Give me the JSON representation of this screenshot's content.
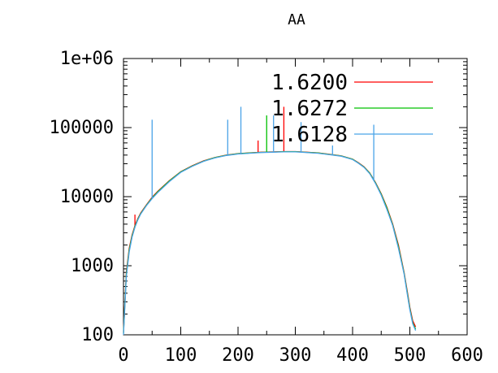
{
  "chart_data": {
    "type": "line",
    "title": "AA",
    "xlabel": "",
    "ylabel": "",
    "xlim": [
      0,
      600
    ],
    "ylim": [
      100,
      1000000
    ],
    "yscale": "log",
    "x_ticks": [
      0,
      100,
      200,
      300,
      400,
      500,
      600
    ],
    "x_tick_labels": [
      "0",
      "100",
      "200",
      "300",
      "400",
      "500",
      "600"
    ],
    "y_ticks": [
      100,
      1000,
      10000,
      100000,
      1000000
    ],
    "y_tick_labels": [
      "100",
      "1000",
      "10000",
      "100000",
      "1e+06"
    ],
    "grid": false,
    "legend_position": "top-right",
    "series": [
      {
        "name": "1.6200",
        "color": "#ff0000",
        "x": [
          0,
          5,
          10,
          15,
          20,
          25,
          30,
          40,
          50,
          60,
          80,
          100,
          120,
          140,
          160,
          180,
          200,
          220,
          240,
          260,
          280,
          300,
          320,
          340,
          360,
          380,
          400,
          410,
          420,
          430,
          440,
          450,
          460,
          470,
          480,
          490,
          495,
          500,
          505,
          510
        ],
        "y": [
          110,
          800,
          1800,
          2800,
          3800,
          4800,
          5800,
          7600,
          9800,
          12000,
          17000,
          23000,
          28000,
          33000,
          37000,
          40000,
          42000,
          43000,
          44000,
          44500,
          45000,
          45000,
          44000,
          43000,
          41000,
          39000,
          35000,
          31000,
          27000,
          22000,
          16000,
          11000,
          7000,
          4000,
          2000,
          800,
          450,
          250,
          160,
          130
        ],
        "spikes": [
          {
            "x": 20,
            "y": 5500
          },
          {
            "x": 235,
            "y": 65000
          },
          {
            "x": 280,
            "y": 200000
          }
        ]
      },
      {
        "name": "1.6272",
        "color": "#00c000",
        "x": [
          0,
          5,
          10,
          15,
          20,
          25,
          30,
          40,
          50,
          60,
          80,
          100,
          120,
          140,
          160,
          180,
          200,
          220,
          240,
          260,
          280,
          300,
          320,
          340,
          360,
          380,
          400,
          410,
          420,
          430,
          440,
          450,
          460,
          470,
          480,
          490,
          495,
          500,
          505,
          510
        ],
        "y": [
          105,
          750,
          1700,
          2700,
          3700,
          4700,
          5700,
          7500,
          9600,
          11800,
          16800,
          22800,
          27800,
          32800,
          36800,
          39800,
          41800,
          42800,
          43800,
          44300,
          44800,
          44800,
          43800,
          42800,
          40800,
          38800,
          34800,
          30800,
          26800,
          21800,
          15800,
          10800,
          6800,
          3900,
          1900,
          780,
          430,
          240,
          150,
          120
        ],
        "spikes": [
          {
            "x": 250,
            "y": 150000
          }
        ]
      },
      {
        "name": "1.6128",
        "color": "#4aa3e8",
        "x": [
          0,
          5,
          10,
          15,
          20,
          25,
          30,
          40,
          50,
          60,
          80,
          100,
          120,
          140,
          160,
          180,
          200,
          220,
          240,
          260,
          280,
          300,
          320,
          340,
          360,
          380,
          400,
          410,
          420,
          430,
          440,
          450,
          460,
          470,
          480,
          490,
          495,
          500,
          505,
          510
        ],
        "y": [
          100,
          700,
          1600,
          2600,
          3600,
          4600,
          5600,
          7400,
          9400,
          11500,
          16500,
          22500,
          27500,
          32500,
          36500,
          39500,
          41500,
          42500,
          43500,
          44000,
          44500,
          44500,
          43500,
          42500,
          40500,
          38500,
          34500,
          30500,
          26500,
          21500,
          15500,
          10500,
          6500,
          3800,
          1800,
          760,
          410,
          230,
          145,
          115
        ],
        "spikes": [
          {
            "x": 50,
            "y": 130000
          },
          {
            "x": 182,
            "y": 130000
          },
          {
            "x": 205,
            "y": 200000
          },
          {
            "x": 262,
            "y": 150000
          },
          {
            "x": 310,
            "y": 120000
          },
          {
            "x": 365,
            "y": 55000
          },
          {
            "x": 437,
            "y": 110000
          }
        ]
      }
    ]
  }
}
